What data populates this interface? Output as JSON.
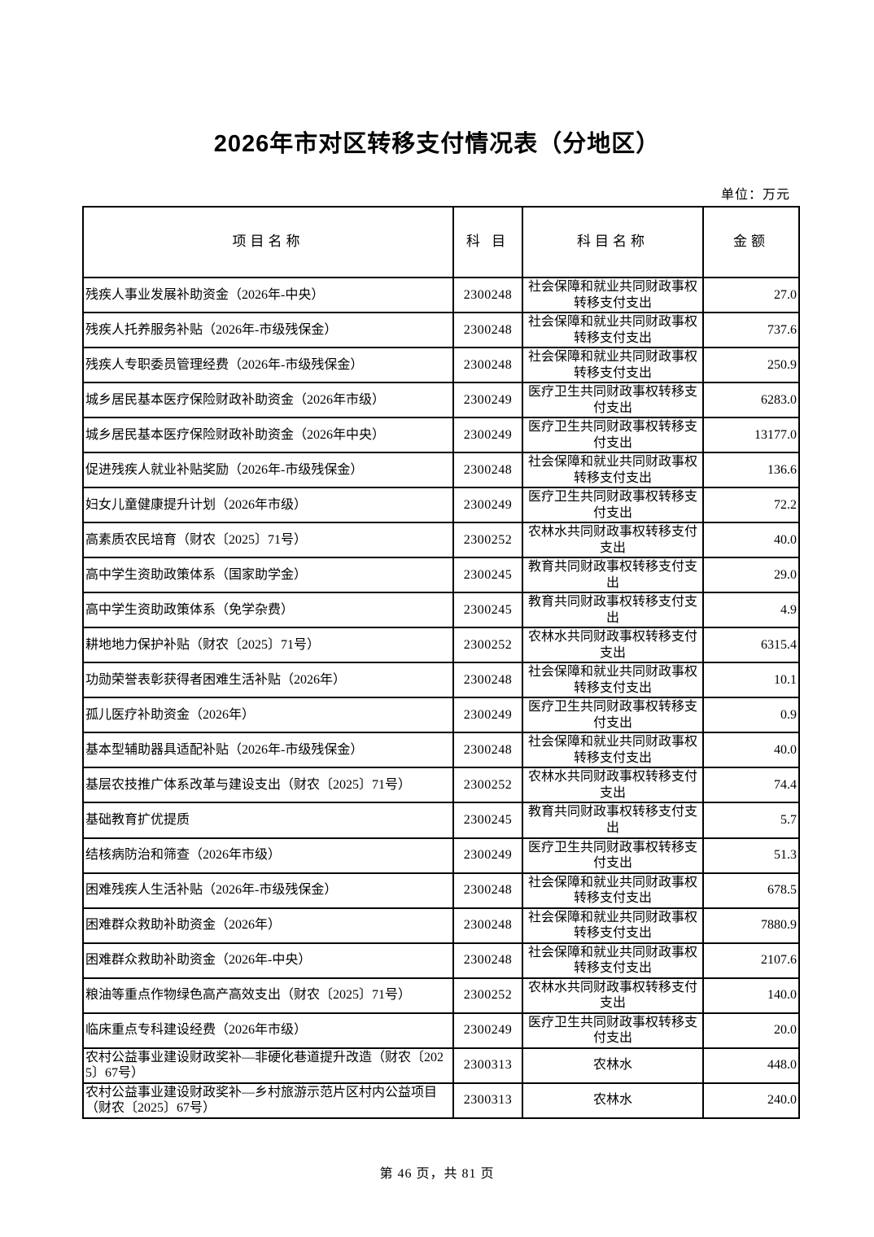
{
  "document": {
    "title": "2026年市对区转移支付情况表（分地区）",
    "unit_note": "单位：万元",
    "page_footer": "第 46 页，共 81 页"
  },
  "table": {
    "columns": [
      "项目名称",
      "科 目",
      "科目名称",
      "金额"
    ],
    "rows": [
      {
        "project": "残疾人事业发展补助资金（2026年-中央）",
        "code": "2300248",
        "subject": "社会保障和就业共同财政事权转移支付支出",
        "amount": "27.0"
      },
      {
        "project": "残疾人托养服务补贴（2026年-市级残保金）",
        "code": "2300248",
        "subject": "社会保障和就业共同财政事权转移支付支出",
        "amount": "737.6"
      },
      {
        "project": "残疾人专职委员管理经费（2026年-市级残保金）",
        "code": "2300248",
        "subject": "社会保障和就业共同财政事权转移支付支出",
        "amount": "250.9"
      },
      {
        "project": "城乡居民基本医疗保险财政补助资金（2026年市级）",
        "code": "2300249",
        "subject": "医疗卫生共同财政事权转移支付支出",
        "amount": "6283.0"
      },
      {
        "project": "城乡居民基本医疗保险财政补助资金（2026年中央）",
        "code": "2300249",
        "subject": "医疗卫生共同财政事权转移支付支出",
        "amount": "13177.0"
      },
      {
        "project": "促进残疾人就业补贴奖励（2026年-市级残保金）",
        "code": "2300248",
        "subject": "社会保障和就业共同财政事权转移支付支出",
        "amount": "136.6"
      },
      {
        "project": "妇女儿童健康提升计划（2026年市级）",
        "code": "2300249",
        "subject": "医疗卫生共同财政事权转移支付支出",
        "amount": "72.2"
      },
      {
        "project": "高素质农民培育（财农〔2025〕71号）",
        "code": "2300252",
        "subject": "农林水共同财政事权转移支付支出",
        "amount": "40.0"
      },
      {
        "project": "高中学生资助政策体系（国家助学金）",
        "code": "2300245",
        "subject": "教育共同财政事权转移支付支出",
        "amount": "29.0"
      },
      {
        "project": "高中学生资助政策体系（免学杂费）",
        "code": "2300245",
        "subject": "教育共同财政事权转移支付支出",
        "amount": "4.9"
      },
      {
        "project": "耕地地力保护补贴（财农〔2025〕71号）",
        "code": "2300252",
        "subject": "农林水共同财政事权转移支付支出",
        "amount": "6315.4"
      },
      {
        "project": "功勋荣誉表彰获得者困难生活补贴（2026年）",
        "code": "2300248",
        "subject": "社会保障和就业共同财政事权转移支付支出",
        "amount": "10.1"
      },
      {
        "project": "孤儿医疗补助资金（2026年）",
        "code": "2300249",
        "subject": "医疗卫生共同财政事权转移支付支出",
        "amount": "0.9"
      },
      {
        "project": "基本型辅助器具适配补贴（2026年-市级残保金）",
        "code": "2300248",
        "subject": "社会保障和就业共同财政事权转移支付支出",
        "amount": "40.0"
      },
      {
        "project": "基层农技推广体系改革与建设支出（财农〔2025〕71号）",
        "code": "2300252",
        "subject": "农林水共同财政事权转移支付支出",
        "amount": "74.4"
      },
      {
        "project": "基础教育扩优提质",
        "code": "2300245",
        "subject": "教育共同财政事权转移支付支出",
        "amount": "5.7"
      },
      {
        "project": "结核病防治和筛查（2026年市级）",
        "code": "2300249",
        "subject": "医疗卫生共同财政事权转移支付支出",
        "amount": "51.3"
      },
      {
        "project": "困难残疾人生活补贴（2026年-市级残保金）",
        "code": "2300248",
        "subject": "社会保障和就业共同财政事权转移支付支出",
        "amount": "678.5"
      },
      {
        "project": "困难群众救助补助资金（2026年）",
        "code": "2300248",
        "subject": "社会保障和就业共同财政事权转移支付支出",
        "amount": "7880.9"
      },
      {
        "project": "困难群众救助补助资金（2026年-中央）",
        "code": "2300248",
        "subject": "社会保障和就业共同财政事权转移支付支出",
        "amount": "2107.6"
      },
      {
        "project": "粮油等重点作物绿色高产高效支出（财农〔2025〕71号）",
        "code": "2300252",
        "subject": "农林水共同财政事权转移支付支出",
        "amount": "140.0"
      },
      {
        "project": "临床重点专科建设经费（2026年市级）",
        "code": "2300249",
        "subject": "医疗卫生共同财政事权转移支付支出",
        "amount": "20.0"
      },
      {
        "project": "农村公益事业建设财政奖补—非硬化巷道提升改造（财农〔2025〕67号）",
        "code": "2300313",
        "subject": "农林水",
        "amount": "448.0"
      },
      {
        "project": "农村公益事业建设财政奖补—乡村旅游示范片区村内公益项目（财农〔2025〕67号）",
        "code": "2300313",
        "subject": "农林水",
        "amount": "240.0"
      }
    ]
  }
}
